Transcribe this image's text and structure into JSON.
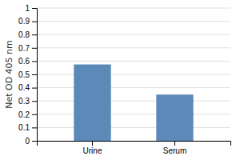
{
  "chart_data": {
    "type": "bar",
    "categories": [
      "Urine",
      "Serum"
    ],
    "values": [
      0.575,
      0.348
    ],
    "color": "#5b8ab8",
    "ylabel": "Net OD 405 nm",
    "ylim": [
      0,
      1.0
    ],
    "yticks": [
      0,
      0.1,
      0.2,
      0.3,
      0.4,
      0.5,
      0.6,
      0.7,
      0.8,
      0.9,
      1
    ],
    "grid": true
  }
}
